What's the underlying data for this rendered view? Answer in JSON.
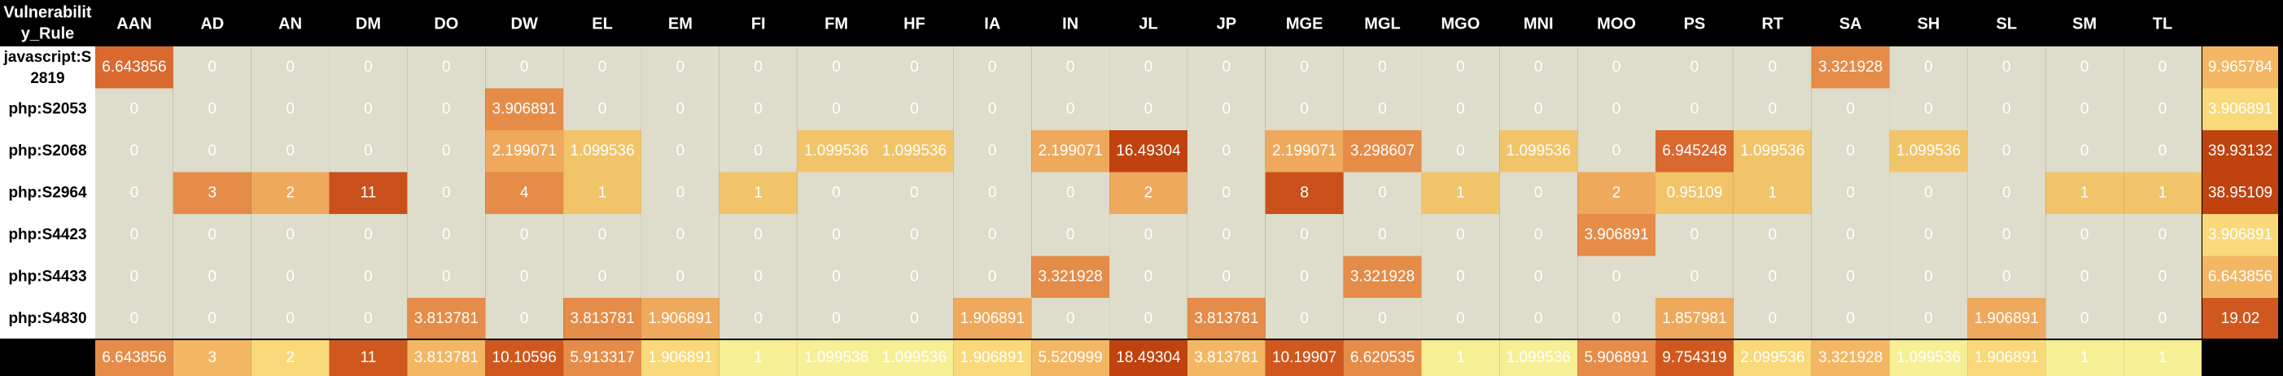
{
  "chart_data": {
    "type": "heatmap",
    "corner_label": [
      "Vulnerabilit",
      "y_Rule"
    ],
    "columns": [
      "AAN",
      "AD",
      "AN",
      "DM",
      "DO",
      "DW",
      "EL",
      "EM",
      "FI",
      "FM",
      "HF",
      "IA",
      "IN",
      "JL",
      "JP",
      "MGE",
      "MGL",
      "MGO",
      "MNI",
      "MOO",
      "PS",
      "RT",
      "SA",
      "SH",
      "SL",
      "SM",
      "TL"
    ],
    "rows": [
      {
        "label": [
          "javascript:S",
          "2819"
        ],
        "values": [
          "6.643856",
          "0",
          "0",
          "0",
          "0",
          "0",
          "0",
          "0",
          "0",
          "0",
          "0",
          "0",
          "0",
          "0",
          "0",
          "0",
          "0",
          "0",
          "0",
          "0",
          "0",
          "0",
          "3.321928",
          "0",
          "0",
          "0",
          "0"
        ],
        "total": "9.965784"
      },
      {
        "label": [
          "php:S2053"
        ],
        "values": [
          "0",
          "0",
          "0",
          "0",
          "0",
          "3.906891",
          "0",
          "0",
          "0",
          "0",
          "0",
          "0",
          "0",
          "0",
          "0",
          "0",
          "0",
          "0",
          "0",
          "0",
          "0",
          "0",
          "0",
          "0",
          "0",
          "0",
          "0"
        ],
        "total": "3.906891"
      },
      {
        "label": [
          "php:S2068"
        ],
        "values": [
          "0",
          "0",
          "0",
          "0",
          "0",
          "2.199071",
          "1.099536",
          "0",
          "0",
          "1.099536",
          "1.099536",
          "0",
          "2.199071",
          "16.49304",
          "0",
          "2.199071",
          "3.298607",
          "0",
          "1.099536",
          "0",
          "6.945248",
          "1.099536",
          "0",
          "1.099536",
          "0",
          "0",
          "0"
        ],
        "total": "39.93132"
      },
      {
        "label": [
          "php:S2964"
        ],
        "values": [
          "0",
          "3",
          "2",
          "11",
          "0",
          "4",
          "1",
          "0",
          "1",
          "0",
          "0",
          "0",
          "0",
          "2",
          "0",
          "8",
          "0",
          "1",
          "0",
          "2",
          "0.95109",
          "1",
          "0",
          "0",
          "0",
          "1",
          "1"
        ],
        "total": "38.95109"
      },
      {
        "label": [
          "php:S4423"
        ],
        "values": [
          "0",
          "0",
          "0",
          "0",
          "0",
          "0",
          "0",
          "0",
          "0",
          "0",
          "0",
          "0",
          "0",
          "0",
          "0",
          "0",
          "0",
          "0",
          "0",
          "3.906891",
          "0",
          "0",
          "0",
          "0",
          "0",
          "0",
          "0"
        ],
        "total": "3.906891"
      },
      {
        "label": [
          "php:S4433"
        ],
        "values": [
          "0",
          "0",
          "0",
          "0",
          "0",
          "0",
          "0",
          "0",
          "0",
          "0",
          "0",
          "0",
          "3.321928",
          "0",
          "0",
          "0",
          "3.321928",
          "0",
          "0",
          "0",
          "0",
          "0",
          "0",
          "0",
          "0",
          "0",
          "0"
        ],
        "total": "6.643856"
      },
      {
        "label": [
          "php:S4830"
        ],
        "values": [
          "0",
          "0",
          "0",
          "0",
          "3.813781",
          "0",
          "3.813781",
          "1.906891",
          "0",
          "0",
          "0",
          "1.906891",
          "0",
          "0",
          "3.813781",
          "0",
          "0",
          "0",
          "0",
          "0",
          "1.857981",
          "0",
          "0",
          "0",
          "1.906891",
          "0",
          "0"
        ],
        "total": "19.02"
      }
    ],
    "column_totals": [
      "6.643856",
      "3",
      "2",
      "11",
      "3.813781",
      "10.10596",
      "5.913317",
      "1.906891",
      "1",
      "1.099536",
      "1.099536",
      "1.906891",
      "5.520999",
      "18.49304",
      "3.813781",
      "10.19907",
      "6.620535",
      "1",
      "1.099536",
      "5.906891",
      "9.754319",
      "2.099536",
      "3.321928",
      "1.099536",
      "1.906891",
      "1",
      "1"
    ],
    "colors": {
      "header_bg": "#000000",
      "header_text": "#ffffff",
      "zero_cell": "#dedcca",
      "zero_text": "#ffffff",
      "row_label_bg": "#ffffff",
      "scale": [
        "#f1c469",
        "#eea95c",
        "#e58c48",
        "#d9692e",
        "#c9501a",
        "#c0420e"
      ],
      "total_scale": [
        "#f7ef96",
        "#f9d979",
        "#f3b764",
        "#e58c48",
        "#d0581e",
        "#c0420e"
      ]
    }
  }
}
